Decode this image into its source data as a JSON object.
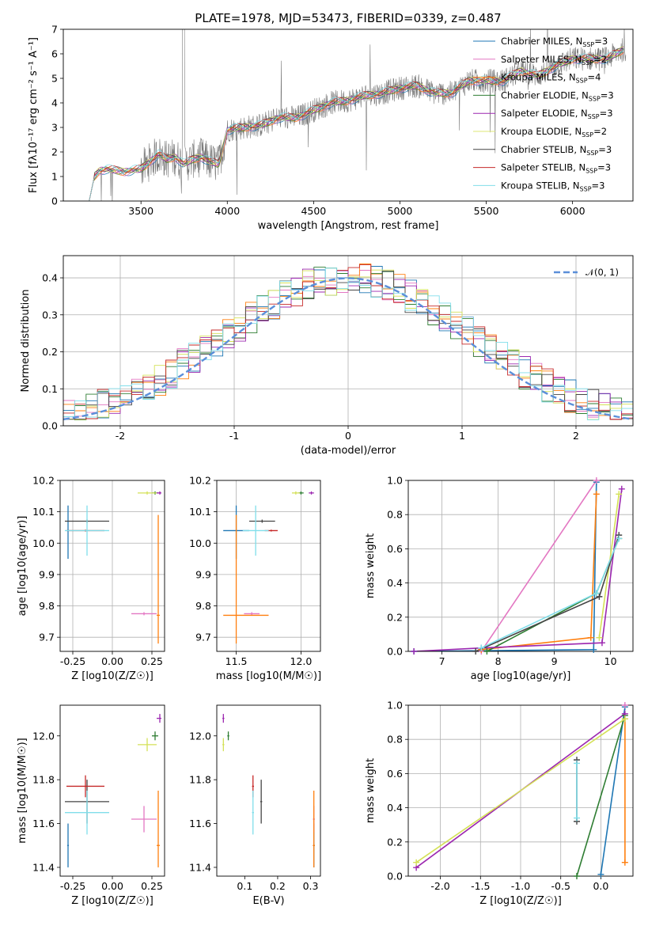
{
  "title": "PLATE=1978, MJD=53473, FIBERID=0339, z=0.487",
  "legend_top": [
    {
      "label": "Chabrier MILES, N",
      "sub": "SSP",
      "suffix": "=3",
      "color": "#1f77b4"
    },
    {
      "label": "Salpeter MILES, N",
      "sub": "SSP",
      "suffix": "=2",
      "color": "#e377c2"
    },
    {
      "label": "Kroupa MILES, N",
      "sub": "SSP",
      "suffix": "=4",
      "color": "#ff7f0e"
    },
    {
      "label": "Chabrier ELODIE, N",
      "sub": "SSP",
      "suffix": "=3",
      "color": "#2e7d32"
    },
    {
      "label": "Salpeter ELODIE, N",
      "sub": "SSP",
      "suffix": "=3",
      "color": "#9c27b0"
    },
    {
      "label": "Kroupa ELODIE, N",
      "sub": "SSP",
      "suffix": "=2",
      "color": "#dce775"
    },
    {
      "label": "Chabrier STELIB, N",
      "sub": "SSP",
      "suffix": "=3",
      "color": "#444444"
    },
    {
      "label": "Salpeter STELIB, N",
      "sub": "SSP",
      "suffix": "=3",
      "color": "#c62828"
    },
    {
      "label": "Kroupa STELIB, N",
      "sub": "SSP",
      "suffix": "=3",
      "color": "#80deea"
    }
  ],
  "legend_hist": {
    "label": "𝒩(0, 1)",
    "color": "#5b8fd9"
  },
  "chart_data": [
    {
      "id": "spectrum",
      "type": "line",
      "title": "PLATE=1978, MJD=53473, FIBERID=0339, z=0.487",
      "xlabel": "wavelength [Angstrom, rest frame]",
      "ylabel": "Flux [f_λ 10^-17 erg cm^-2 s^-1 A^-1]",
      "xlim": [
        3050,
        6350
      ],
      "ylim": [
        0,
        7
      ],
      "xticks": [
        3500,
        4000,
        4500,
        5000,
        5500,
        6000
      ],
      "yticks": [
        0,
        1,
        2,
        3,
        4,
        5,
        6,
        7
      ],
      "continuum": {
        "x": [
          3200,
          3230,
          3260,
          3300,
          3350,
          3400,
          3450,
          3500,
          3550,
          3600,
          3650,
          3700,
          3750,
          3800,
          3850,
          3900,
          3950,
          4000,
          4100,
          4200,
          4300,
          4400,
          4500,
          4600,
          4700,
          4800,
          4900,
          5000,
          5100,
          5200,
          5300,
          5400,
          5500,
          5600,
          5700,
          5800,
          5900,
          6000,
          6100,
          6200,
          6300
        ],
        "y": [
          0,
          1.0,
          1.25,
          1.3,
          1.25,
          1.2,
          1.25,
          1.3,
          1.6,
          1.9,
          1.7,
          1.8,
          1.5,
          1.7,
          1.8,
          1.6,
          1.5,
          2.9,
          3.0,
          3.1,
          3.4,
          3.4,
          3.7,
          4.0,
          4.1,
          4.3,
          4.4,
          4.6,
          4.7,
          4.4,
          4.4,
          4.9,
          4.9,
          4.9,
          5.3,
          5.1,
          5.5,
          5.8,
          5.8,
          5.8,
          6.2
        ]
      }
    },
    {
      "id": "residual-hist",
      "type": "area",
      "xlabel": "(data-model)/error",
      "ylabel": "Normed distribution",
      "xlim": [
        -2.5,
        2.5
      ],
      "ylim": [
        0,
        0.46
      ],
      "xticks": [
        -2,
        -1,
        0,
        1,
        2
      ],
      "yticks": [
        0.0,
        0.1,
        0.2,
        0.3,
        0.4
      ],
      "bin_width": 0.1,
      "series": [
        {
          "name": "𝒩(0, 1)",
          "mu": 0,
          "sigma": 1
        }
      ]
    },
    {
      "id": "age-vs-Z",
      "type": "scatter",
      "xlabel": "Z [log10(Z/Z☉)]",
      "ylabel": "age [log10(age/yr)]",
      "xlim": [
        -0.33,
        0.33
      ],
      "ylim": [
        9.655,
        10.2
      ],
      "xticks": [
        -0.25,
        0.0,
        0.25
      ],
      "yticks": [
        9.7,
        9.8,
        9.9,
        10.0,
        10.1,
        10.2
      ]
    },
    {
      "id": "age-vs-mass",
      "type": "scatter",
      "xlabel": "mass [log10(M/M☉)]",
      "xlim": [
        11.35,
        12.15
      ],
      "ylim": [
        9.655,
        10.2
      ],
      "xticks": [
        11.5,
        12.0
      ],
      "yticks": [
        9.7,
        9.8,
        9.9,
        10.0,
        10.1,
        10.2
      ]
    },
    {
      "id": "weight-vs-age",
      "type": "line",
      "xlabel": "age [log10(age/yr)]",
      "ylabel": "mass weight",
      "xlim": [
        6.4,
        10.4
      ],
      "ylim": [
        0,
        1
      ],
      "xticks": [
        7,
        8,
        9,
        10
      ],
      "yticks": [
        0.0,
        0.2,
        0.4,
        0.6,
        0.8,
        1.0
      ]
    },
    {
      "id": "mass-vs-Z",
      "type": "scatter",
      "xlabel": "Z [log10(Z/Z☉)]",
      "ylabel": "mass [log10(M/M☉)]",
      "xlim": [
        -0.33,
        0.33
      ],
      "ylim": [
        11.36,
        12.14
      ],
      "xticks": [
        -0.25,
        0.0,
        0.25
      ],
      "yticks": [
        11.4,
        11.6,
        11.8,
        12.0
      ]
    },
    {
      "id": "mass-vs-ebv",
      "type": "scatter",
      "xlabel": "E(B-V)",
      "xlim": [
        0.015,
        0.33
      ],
      "ylim": [
        11.36,
        12.14
      ],
      "xticks": [
        0.1,
        0.2,
        0.3
      ],
      "yticks": [
        11.4,
        11.6,
        11.8,
        12.0
      ]
    },
    {
      "id": "weight-vs-Z",
      "type": "line",
      "xlabel": "Z [log10(Z/Z☉)]",
      "ylabel": "mass weight",
      "xlim": [
        -2.4,
        0.4
      ],
      "ylim": [
        0,
        1
      ],
      "xticks": [
        -2.0,
        -1.5,
        -1.0,
        -0.5,
        0.0
      ],
      "yticks": [
        0.0,
        0.2,
        0.4,
        0.6,
        0.8,
        1.0
      ]
    }
  ],
  "models": [
    {
      "name": "Chabrier MILES",
      "color": "#1f77b4",
      "Z": -0.28,
      "Zerr": [
        0.005,
        0.005
      ],
      "age": 10.04,
      "ageErr": [
        0.09,
        0.08
      ],
      "mass": 11.5,
      "massErr": [
        0.1,
        0.1
      ],
      "ebv": 0.31,
      "ebvErr": [
        0.003,
        0.003
      ],
      "wAge": [
        [
          6.5,
          0.0
        ],
        [
          9.7,
          0.01
        ],
        [
          9.75,
          0.99
        ]
      ],
      "wZ": [
        [
          0.0,
          0.01
        ],
        [
          0.3,
          0.99
        ]
      ]
    },
    {
      "name": "Salpeter MILES",
      "color": "#e377c2",
      "Z": 0.2,
      "Zerr": [
        0.08,
        0.08
      ],
      "age": 9.775,
      "ageErr": [
        0.005,
        0.005
      ],
      "mass": 11.62,
      "massErr": [
        0.06,
        0.06
      ],
      "ebv": 0.31,
      "ebvErr": [
        0.003,
        0.003
      ],
      "wAge": [
        [
          7.7,
          0.0
        ],
        [
          9.75,
          1.0
        ]
      ],
      "wZ": [
        [
          0.3,
          1.0
        ]
      ]
    },
    {
      "name": "Kroupa MILES",
      "color": "#ff7f0e",
      "Z": 0.29,
      "Zerr": [
        0.01,
        0.01
      ],
      "age": 9.77,
      "ageErr": [
        0.09,
        0.32
      ],
      "mass": 11.5,
      "massErr": [
        0.1,
        0.25
      ],
      "ebv": 0.31,
      "ebvErr": [
        0.003,
        0.003
      ],
      "wAge": [
        [
          7.7,
          0.01
        ],
        [
          9.65,
          0.08
        ],
        [
          9.75,
          0.92
        ]
      ],
      "wZ": [
        [
          0.3,
          0.08
        ],
        [
          0.3,
          0.92
        ]
      ]
    },
    {
      "name": "Chabrier ELODIE",
      "color": "#2e7d32",
      "Z": 0.27,
      "Zerr": [
        0.02,
        0.02
      ],
      "age": 10.16,
      "ageErr": [
        0.005,
        0.005
      ],
      "mass": 12.0,
      "massErr": [
        0.02,
        0.02
      ],
      "ebv": 0.05,
      "ebvErr": [
        0.003,
        0.003
      ],
      "wAge": [
        [
          7.8,
          0.0
        ],
        [
          9.75,
          0.34
        ],
        [
          10.15,
          0.66
        ]
      ],
      "wZ": [
        [
          -0.3,
          0.0
        ],
        [
          0.3,
          0.94
        ]
      ]
    },
    {
      "name": "Salpeter ELODIE",
      "color": "#9c27b0",
      "Z": 0.3,
      "Zerr": [
        0.02,
        0.01
      ],
      "age": 10.16,
      "ageErr": [
        0.005,
        0.005
      ],
      "mass": 12.08,
      "massErr": [
        0.02,
        0.02
      ],
      "ebv": 0.035,
      "ebvErr": [
        0.003,
        0.003
      ],
      "wAge": [
        [
          6.5,
          0.0
        ],
        [
          7.7,
          0.02
        ],
        [
          9.85,
          0.05
        ],
        [
          10.2,
          0.95
        ]
      ],
      "wZ": [
        [
          -2.3,
          0.05
        ],
        [
          0.3,
          0.95
        ]
      ]
    },
    {
      "name": "Kroupa ELODIE",
      "color": "#d4e157",
      "Z": 0.22,
      "Zerr": [
        0.06,
        0.06
      ],
      "age": 10.16,
      "ageErr": [
        0.005,
        0.005
      ],
      "mass": 11.96,
      "massErr": [
        0.03,
        0.03
      ],
      "ebv": 0.035,
      "ebvErr": [
        0.003,
        0.003
      ],
      "wAge": [
        [
          9.8,
          0.08
        ],
        [
          10.15,
          0.92
        ]
      ],
      "wZ": [
        [
          -2.3,
          0.08
        ],
        [
          0.3,
          0.92
        ]
      ]
    },
    {
      "name": "Chabrier STELIB",
      "color": "#444444",
      "Z": -0.16,
      "Zerr": [
        0.14,
        0.14
      ],
      "age": 10.07,
      "ageErr": [
        0.005,
        0.005
      ],
      "mass": 11.7,
      "massErr": [
        0.1,
        0.1
      ],
      "ebv": 0.15,
      "ebvErr": [
        0.003,
        0.003
      ],
      "wAge": [
        [
          7.6,
          0.0
        ],
        [
          9.8,
          0.32
        ],
        [
          10.15,
          0.68
        ]
      ],
      "wZ": [
        [
          -0.3,
          0.32
        ],
        [
          -0.3,
          0.68
        ]
      ]
    },
    {
      "name": "Salpeter STELIB",
      "color": "#c62828",
      "Z": -0.17,
      "Zerr": [
        0.12,
        0.12
      ],
      "age": 10.04,
      "ageErr": [
        0.003,
        0.003
      ],
      "mass": 11.77,
      "massErr": [
        0.05,
        0.05
      ],
      "ebv": 0.125,
      "ebvErr": [
        0.003,
        0.003
      ],
      "wAge": [],
      "wZ": []
    },
    {
      "name": "Kroupa STELIB",
      "color": "#80deea",
      "Z": -0.16,
      "Zerr": [
        0.14,
        0.14
      ],
      "age": 10.04,
      "ageErr": [
        0.08,
        0.08
      ],
      "mass": 11.65,
      "massErr": [
        0.1,
        0.1
      ],
      "ebv": 0.125,
      "ebvErr": [
        0.003,
        0.003
      ],
      "wAge": [
        [
          7.7,
          0.02
        ],
        [
          9.75,
          0.34
        ],
        [
          10.15,
          0.66
        ]
      ],
      "wZ": [
        [
          -0.3,
          0.34
        ],
        [
          -0.3,
          0.66
        ]
      ]
    }
  ]
}
